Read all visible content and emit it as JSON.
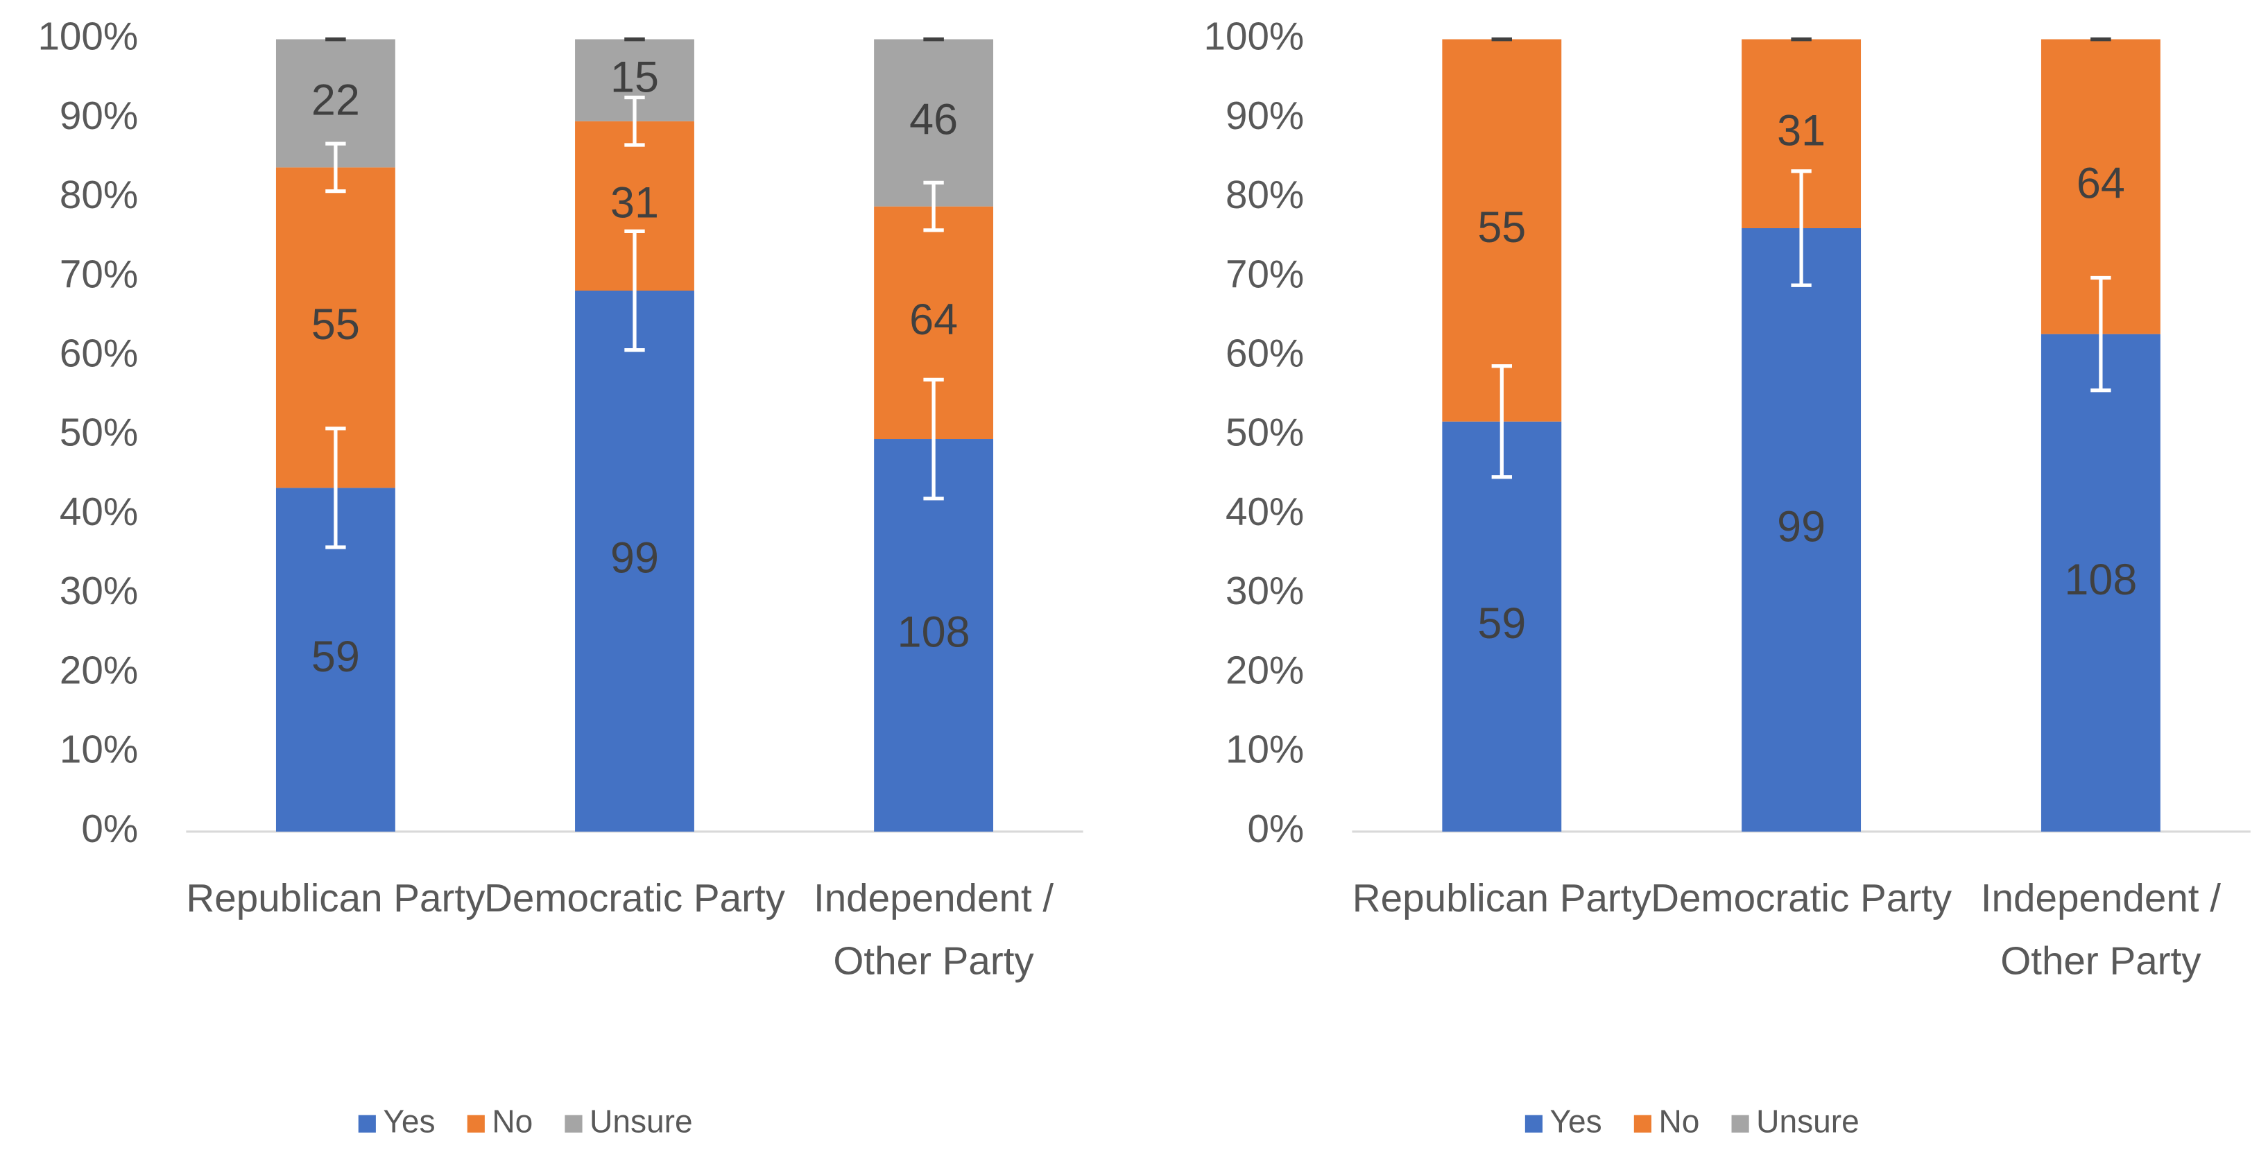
{
  "chart_data": [
    {
      "type": "bar",
      "stacking": "percent",
      "categories": [
        "Republican Party",
        "Democratic Party",
        "Independent / Other Party"
      ],
      "series": [
        {
          "name": "Yes",
          "color": "#4472c4",
          "values": [
            59,
            99,
            108
          ],
          "errors": [
            7.5,
            7.5,
            7.5
          ]
        },
        {
          "name": "No",
          "color": "#ed7d31",
          "values": [
            55,
            31,
            64
          ],
          "errors": [
            3,
            3,
            3
          ]
        },
        {
          "name": "Unsure",
          "color": "#a5a5a5",
          "values": [
            22,
            15,
            46
          ],
          "errors": [
            0,
            0,
            0
          ]
        }
      ],
      "error_color": "#ffffff",
      "ylim": [
        0,
        100
      ],
      "yticks": [
        {
          "value": 0,
          "label": "0%"
        },
        {
          "value": 10,
          "label": "10%"
        },
        {
          "value": 20,
          "label": "20%"
        },
        {
          "value": 30,
          "label": "30%"
        },
        {
          "value": 40,
          "label": "40%"
        },
        {
          "value": 50,
          "label": "50%"
        },
        {
          "value": 60,
          "label": "60%"
        },
        {
          "value": 70,
          "label": "70%"
        },
        {
          "value": 80,
          "label": "80%"
        },
        {
          "value": 90,
          "label": "90%"
        },
        {
          "value": 100,
          "label": "100%"
        }
      ],
      "grid": false,
      "legend": "bottom"
    },
    {
      "type": "bar",
      "stacking": "percent",
      "categories": [
        "Republican Party",
        "Democratic Party",
        "Independent / Other Party"
      ],
      "series": [
        {
          "name": "Yes",
          "color": "#4472c4",
          "values": [
            59,
            99,
            108
          ],
          "errors": [
            7,
            7.2,
            7.1
          ]
        },
        {
          "name": "No",
          "color": "#ed7d31",
          "values": [
            55,
            31,
            64
          ],
          "errors": [
            0,
            0,
            0
          ]
        },
        {
          "name": "Unsure",
          "color": "#a5a5a5",
          "values": [
            null,
            null,
            null
          ],
          "errors": [
            null,
            null,
            null
          ]
        }
      ],
      "error_color": "#ffffff",
      "ylim": [
        0,
        100
      ],
      "yticks": [
        {
          "value": 0,
          "label": "0%"
        },
        {
          "value": 10,
          "label": "10%"
        },
        {
          "value": 20,
          "label": "20%"
        },
        {
          "value": 30,
          "label": "30%"
        },
        {
          "value": 40,
          "label": "40%"
        },
        {
          "value": 50,
          "label": "50%"
        },
        {
          "value": 60,
          "label": "60%"
        },
        {
          "value": 70,
          "label": "70%"
        },
        {
          "value": 80,
          "label": "80%"
        },
        {
          "value": 90,
          "label": "90%"
        },
        {
          "value": 100,
          "label": "100%"
        }
      ],
      "grid": false,
      "legend": "bottom"
    }
  ]
}
